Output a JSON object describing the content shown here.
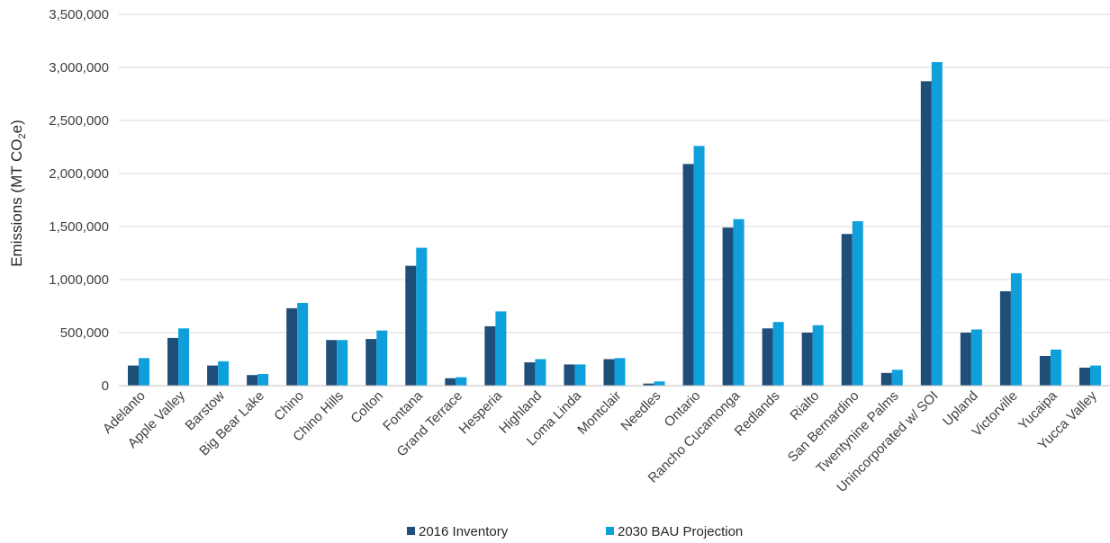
{
  "colors": {
    "series_2016": "#1f4e79",
    "series_2030": "#0fa0dc",
    "grid": "#d9d9d9",
    "text": "#404040"
  },
  "chart_data": {
    "type": "bar",
    "title": "",
    "xlabel": "",
    "ylabel": "Emissions (MT CO2e)",
    "ylabel_parts": {
      "before": "Emissions (MT CO",
      "sub": "2",
      "after": "e)"
    },
    "ylim": [
      0,
      3500000
    ],
    "yticks": [
      0,
      500000,
      1000000,
      1500000,
      2000000,
      2500000,
      3000000,
      3500000
    ],
    "ytick_labels": [
      "0",
      "500,000",
      "1,000,000",
      "1,500,000",
      "2,000,000",
      "2,500,000",
      "3,000,000",
      "3,500,000"
    ],
    "grid": true,
    "legend_position": "bottom",
    "categories": [
      "Adelanto",
      "Apple Valley",
      "Barstow",
      "Big Bear Lake",
      "Chino",
      "Chino Hills",
      "Colton",
      "Fontana",
      "Grand Terrace",
      "Hesperia",
      "Highland",
      "Loma Linda",
      "Montclair",
      "Needles",
      "Ontario",
      "Rancho Cucamonga",
      "Redlands",
      "Rialto",
      "San Bernardino",
      "Twentynine Palms",
      "Unincorporated w/ SOI",
      "Upland",
      "Victorville",
      "Yucaipa",
      "Yucca Valley"
    ],
    "series": [
      {
        "name": "2016 Inventory",
        "values": [
          190000,
          450000,
          190000,
          100000,
          730000,
          430000,
          440000,
          1130000,
          70000,
          560000,
          220000,
          200000,
          250000,
          20000,
          2090000,
          1490000,
          540000,
          500000,
          1430000,
          120000,
          2870000,
          500000,
          890000,
          280000,
          170000
        ]
      },
      {
        "name": "2030 BAU Projection",
        "values": [
          260000,
          540000,
          230000,
          110000,
          780000,
          430000,
          520000,
          1300000,
          80000,
          700000,
          250000,
          200000,
          260000,
          40000,
          2260000,
          1570000,
          600000,
          570000,
          1550000,
          150000,
          3050000,
          530000,
          1060000,
          340000,
          190000
        ]
      }
    ]
  }
}
